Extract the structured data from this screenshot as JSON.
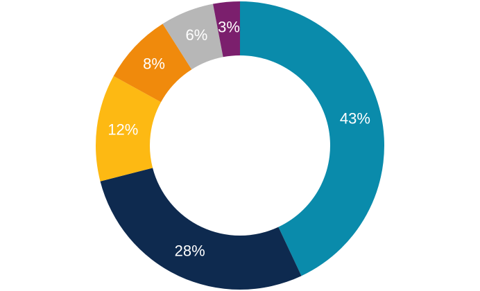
{
  "chart_data": {
    "type": "donut",
    "values": [
      43,
      28,
      12,
      8,
      6,
      3
    ],
    "value_labels": [
      "43%",
      "28%",
      "12%",
      "8%",
      "6%",
      "3%"
    ],
    "colors": [
      "#0a8bab",
      "#0e2a4f",
      "#fdb913",
      "#f08a0c",
      "#b7b7b7",
      "#7b1f6d"
    ]
  }
}
